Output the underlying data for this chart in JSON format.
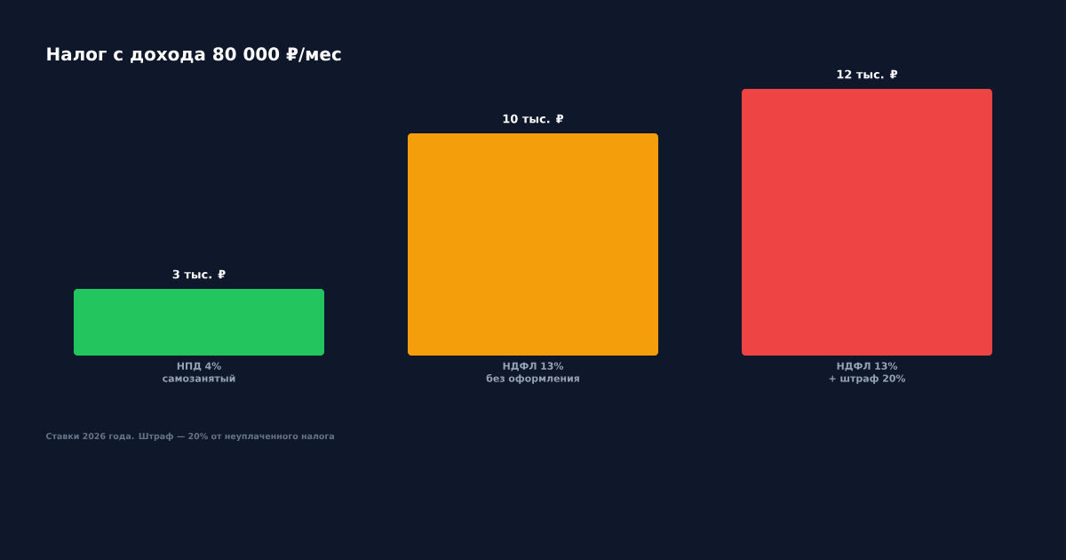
{
  "chart_data": {
    "type": "bar",
    "title": "Налог с дохода 80 000 ₽/мес",
    "categories": [
      "НПД 4% самозанятый",
      "НДФЛ 13% без оформления",
      "НДФЛ 13% + штраф 20%"
    ],
    "values": [
      3,
      10,
      12
    ],
    "colors": [
      "#22c55e",
      "#f59e0b",
      "#ef4444"
    ],
    "value_labels": [
      "3 тыс. ₽",
      "10 тыс. ₽",
      "12 тыс. ₽"
    ],
    "annotations": [
      "Ставки 2026 года. Штраф — 20% от неуплаченного налога"
    ]
  }
}
